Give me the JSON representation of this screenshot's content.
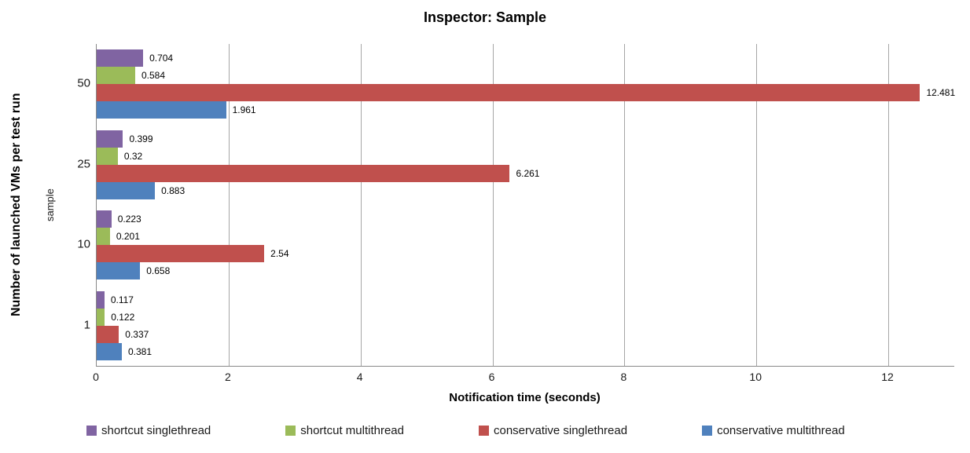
{
  "title": "Inspector: Sample",
  "axes": {
    "x_title": "Notification time (seconds)",
    "y_title": "Number of launched VMs per test run",
    "y_subtitle": "sample"
  },
  "chart_data": {
    "type": "bar",
    "orientation": "horizontal",
    "title": "Inspector: Sample",
    "xlabel": "Notification time (seconds)",
    "ylabel": "Number of launched VMs per test run",
    "ylabel_secondary": "sample",
    "categories": [
      "50",
      "25",
      "10",
      "1"
    ],
    "series": [
      {
        "name": "shortcut singlethread",
        "color": "#8064A2",
        "values": [
          0.704,
          0.399,
          0.223,
          0.117
        ]
      },
      {
        "name": "shortcut multithread",
        "color": "#9BBB59",
        "values": [
          0.584,
          0.32,
          0.201,
          0.122
        ]
      },
      {
        "name": "conservative singlethread",
        "color": "#C0504D",
        "values": [
          12.481,
          6.261,
          2.54,
          0.337
        ]
      },
      {
        "name": "conservative multithread",
        "color": "#4F81BD",
        "values": [
          1.961,
          0.883,
          0.658,
          0.381
        ]
      }
    ],
    "data_labels": [
      [
        "0.704",
        "0.584",
        "12.481",
        "1.961"
      ],
      [
        "0.399",
        "0.32",
        "6.261",
        "0.883"
      ],
      [
        "0.223",
        "0.201",
        "2.54",
        "0.658"
      ],
      [
        "0.117",
        "0.122",
        "0.337",
        "0.381"
      ]
    ],
    "xlim": [
      0,
      13
    ],
    "x_ticks": [
      0,
      2,
      4,
      6,
      8,
      10,
      12
    ],
    "grid": true,
    "legend_position": "bottom",
    "colors": {
      "gridline": "#A6A6A6",
      "axis_line": "#898989",
      "background": "#FFFFFF",
      "text": "#000000"
    }
  }
}
